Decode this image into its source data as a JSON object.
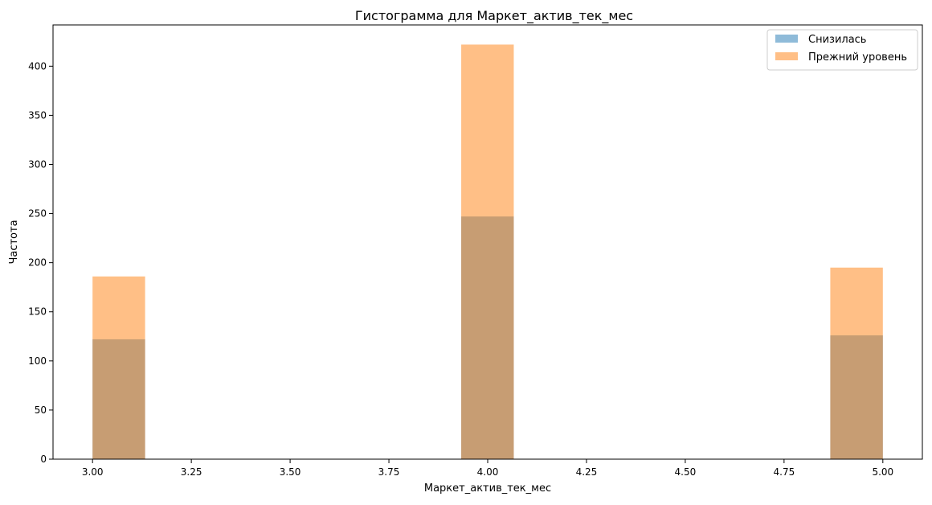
{
  "chart_data": {
    "type": "bar",
    "title": "Гистограмма для Маркет_актив_тек_мес",
    "xlabel": "Маркет_актив_тек_мес",
    "ylabel": "Частота",
    "xlim": [
      2.9,
      5.1
    ],
    "ylim": [
      0,
      442
    ],
    "bin_width": 0.133,
    "xticks": [
      3.0,
      3.25,
      3.5,
      3.75,
      4.0,
      4.25,
      4.5,
      4.75,
      5.0
    ],
    "xtick_labels": [
      "3.00",
      "3.25",
      "3.50",
      "3.75",
      "4.00",
      "4.25",
      "4.50",
      "4.75",
      "5.00"
    ],
    "yticks": [
      0,
      50,
      100,
      150,
      200,
      250,
      300,
      350,
      400
    ],
    "ytick_labels": [
      "0",
      "50",
      "100",
      "150",
      "200",
      "250",
      "300",
      "350",
      "400"
    ],
    "grid": false,
    "legend_position": "top-right",
    "series": [
      {
        "name": "Снизилась",
        "color": "#1f77b4",
        "opacity": 0.5,
        "bins": [
          {
            "x_start": 3.0,
            "value": 122
          },
          {
            "x_start": 3.933,
            "value": 247
          },
          {
            "x_start": 4.867,
            "value": 126
          }
        ]
      },
      {
        "name": "Прежний уровень",
        "color": "#ff7f0e",
        "opacity": 0.5,
        "bins": [
          {
            "x_start": 3.0,
            "value": 186
          },
          {
            "x_start": 3.933,
            "value": 422
          },
          {
            "x_start": 4.867,
            "value": 195
          }
        ]
      }
    ]
  }
}
